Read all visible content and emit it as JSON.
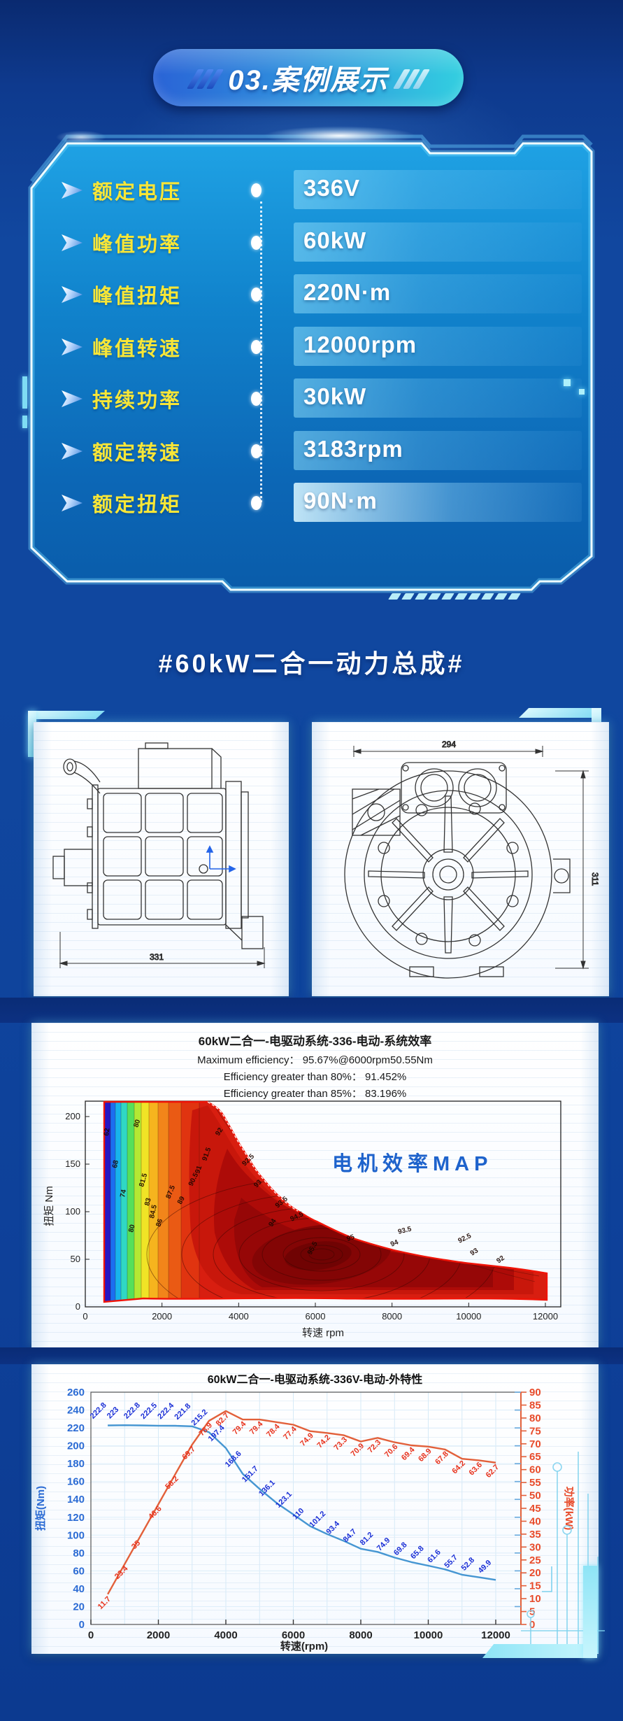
{
  "header": {
    "title": "03.案例展示"
  },
  "specs": {
    "rows": [
      {
        "label": "额定电压",
        "value": "336V"
      },
      {
        "label": "峰值功率",
        "value": "60kW"
      },
      {
        "label": "峰值扭矩",
        "value": "220N·m"
      },
      {
        "label": "峰值转速",
        "value": "12000rpm"
      },
      {
        "label": "持续功率",
        "value": "30kW"
      },
      {
        "label": "额定转速",
        "value": "3183rpm"
      },
      {
        "label": "额定扭矩",
        "value": "90N·m"
      }
    ]
  },
  "product_title": "#60kW二合一动力总成#",
  "drawings": {
    "side_view_dimension": "331",
    "front_view_width_dimension": "294",
    "front_view_height_dimension": "311"
  },
  "colors": {
    "accent_cyan": "#54e0f0",
    "label_yellow": "#f8e637",
    "badge_gradient_start": "#2a63d6",
    "badge_gradient_end": "#33cfe0",
    "map_label_blue": "#1e63cc",
    "torque_curve": "#4596d2",
    "power_curve": "#e2603a"
  },
  "chart_data": [
    {
      "type": "heatmap",
      "title": "60kW二合一-电驱动系统-336-电动-系统效率",
      "subtitle_lines": [
        "Maximum efficiency：  95.67%@6000rpm50.55Nm",
        "Efficiency greater than 80%：  91.452%",
        "Efficiency greater than 85%：  83.196%"
      ],
      "overlay_label": "电机效率MAP",
      "xlabel": "转速 rpm",
      "ylabel": "扭矩 Nm",
      "x_ticks": [
        0,
        2000,
        4000,
        6000,
        8000,
        10000,
        12000
      ],
      "y_ticks": [
        0,
        50,
        100,
        150,
        200
      ],
      "xlim": [
        0,
        12400
      ],
      "ylim": [
        0,
        216
      ],
      "legend_position": "none",
      "grid": false,
      "max_efficiency": {
        "value_pct": 95.67,
        "rpm": 6000,
        "torque_nm": 50.55
      },
      "efficiency_gt_80_pct": 91.452,
      "efficiency_gt_85_pct": 83.196,
      "envelope": {
        "rpm": [
          500,
          3200,
          3600,
          4000,
          4500,
          5000,
          5500,
          6000,
          7000,
          8000,
          9000,
          10000,
          11000,
          12000
        ],
        "torque_nm": [
          223,
          223,
          198,
          169,
          139,
          117,
          101,
          90,
          71,
          60,
          51,
          45,
          41,
          35
        ]
      },
      "contour_levels": [
        62,
        65,
        68,
        71,
        74,
        77,
        80,
        81.5,
        83,
        84.5,
        86,
        87.5,
        89,
        90.5,
        91,
        91.5,
        92,
        92.5,
        93,
        93.5,
        94,
        94.5,
        95,
        95.5
      ],
      "contour_label_values": [
        "62",
        "68",
        "74",
        "80",
        "80",
        "81.5",
        "83",
        "84.5",
        "86",
        "87.5",
        "89",
        "90.5",
        "91",
        "91.5",
        "92",
        "92.5",
        "93",
        "93.5",
        "94",
        "94.5",
        "95",
        "95.5",
        "93.5",
        "94",
        "92.5",
        "93",
        "92"
      ]
    },
    {
      "type": "line",
      "title": "60kW二合一-电驱动系统-336V-电动-外特性",
      "xlabel": "转速(rpm)",
      "ylabel_left": "扭矩(Nm)",
      "ylabel_right": "功率(kW)",
      "x_ticks": [
        0,
        2000,
        4000,
        6000,
        8000,
        10000,
        12000
      ],
      "y_left_ticks": [
        0,
        20,
        40,
        60,
        80,
        100,
        120,
        140,
        160,
        180,
        200,
        220,
        240,
        260
      ],
      "y_right_ticks": [
        0,
        5,
        10,
        15,
        20,
        25,
        30,
        35,
        40,
        45,
        50,
        55,
        60,
        65,
        70,
        75,
        80,
        85,
        90
      ],
      "ylim_left": [
        0,
        260
      ],
      "ylim_right": [
        0,
        90
      ],
      "xlim": [
        0,
        12750
      ],
      "grid": true,
      "x": [
        500,
        1000,
        1500,
        2000,
        2500,
        3000,
        3500,
        4000,
        4500,
        5000,
        5500,
        6000,
        6500,
        7000,
        7500,
        8000,
        8500,
        9000,
        9500,
        10000,
        10500,
        11000,
        11500,
        12000
      ],
      "series": [
        {
          "name": "扭矩(Nm)",
          "axis": "left",
          "color": "#4596d2",
          "label_color": "#1a2fd6",
          "values": [
            222.8,
            223,
            222.8,
            222.5,
            222.4,
            221.8,
            215.2,
            197.4,
            168.6,
            151.7,
            136.1,
            123.1,
            110,
            101.2,
            93.4,
            84.7,
            81.2,
            74.9,
            69.8,
            65.8,
            61.6,
            55.7,
            52.8,
            49.9
          ]
        },
        {
          "name": "功率(kW)",
          "axis": "right",
          "color": "#e2603a",
          "label_color": "#e8321c",
          "values": [
            11.7,
            23.4,
            35,
            46.6,
            58.2,
            69.7,
            78.9,
            82.7,
            79.4,
            79.4,
            78.4,
            77.4,
            74.9,
            74.2,
            73.3,
            70.9,
            72.3,
            70.6,
            69.4,
            68.9,
            67.8,
            64.2,
            63.6,
            62.7
          ]
        }
      ]
    }
  ]
}
